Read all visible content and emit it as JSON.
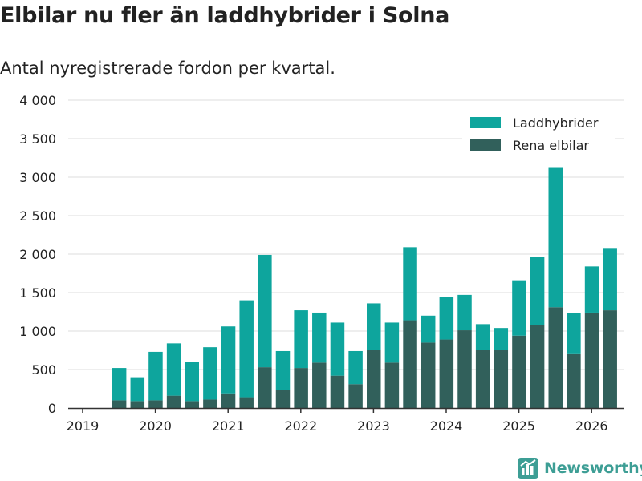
{
  "title": "Elbilar nu fler än laddhybrider i Solna",
  "subtitle": "Antal nyregistrerade fordon per kvartal.",
  "brand": "Newsworthy",
  "colors": {
    "hybrid": "#0ea59d",
    "electric": "#31605b",
    "grid": "#dddddd",
    "axis": "#333333",
    "text": "#222222",
    "brand": "#3d9e95"
  },
  "chart_data": {
    "type": "bar",
    "stacked": true,
    "title": "Elbilar nu fler än laddhybrider i Solna",
    "subtitle": "Antal nyregistrerade fordon per kvartal.",
    "xlabel": "",
    "ylabel": "",
    "ylim": [
      0,
      4000
    ],
    "yticks": [
      0,
      500,
      1000,
      1500,
      2000,
      2500,
      3000,
      3500,
      4000
    ],
    "ytick_labels": [
      "0",
      "500",
      "1 000",
      "1 500",
      "2 000",
      "2 500",
      "3 000",
      "3 500",
      "4 000"
    ],
    "xticks": [
      "2019",
      "2020",
      "2021",
      "2022",
      "2023",
      "2024",
      "2025",
      "2026"
    ],
    "grid": true,
    "legend_position": "top-right",
    "categories": [
      "2019 Q2",
      "2019 Q3",
      "2019 Q4",
      "2020 Q1",
      "2020 Q2",
      "2020 Q3",
      "2020 Q4",
      "2021 Q1",
      "2021 Q2",
      "2021 Q3",
      "2021 Q4",
      "2022 Q1",
      "2022 Q2",
      "2022 Q3",
      "2022 Q4",
      "2023 Q1",
      "2023 Q2",
      "2023 Q3",
      "2023 Q4",
      "2024 Q1",
      "2024 Q2",
      "2024 Q3",
      "2024 Q4",
      "2025 Q1",
      "2025 Q2",
      "2025 Q3",
      "2025 Q4",
      "2026 Q1"
    ],
    "series": [
      {
        "name": "Rena elbilar",
        "color": "#31605b",
        "values": [
          100,
          90,
          100,
          160,
          90,
          110,
          190,
          140,
          530,
          230,
          520,
          590,
          420,
          310,
          760,
          590,
          1140,
          850,
          890,
          1010,
          750,
          750,
          940,
          1080,
          1310,
          710,
          1240,
          1270
        ]
      },
      {
        "name": "Laddhybrider",
        "color": "#0ea59d",
        "values": [
          420,
          310,
          630,
          680,
          510,
          680,
          870,
          1260,
          1460,
          510,
          750,
          650,
          690,
          430,
          600,
          520,
          950,
          350,
          550,
          460,
          340,
          290,
          720,
          880,
          1820,
          520,
          600,
          810
        ]
      }
    ]
  }
}
